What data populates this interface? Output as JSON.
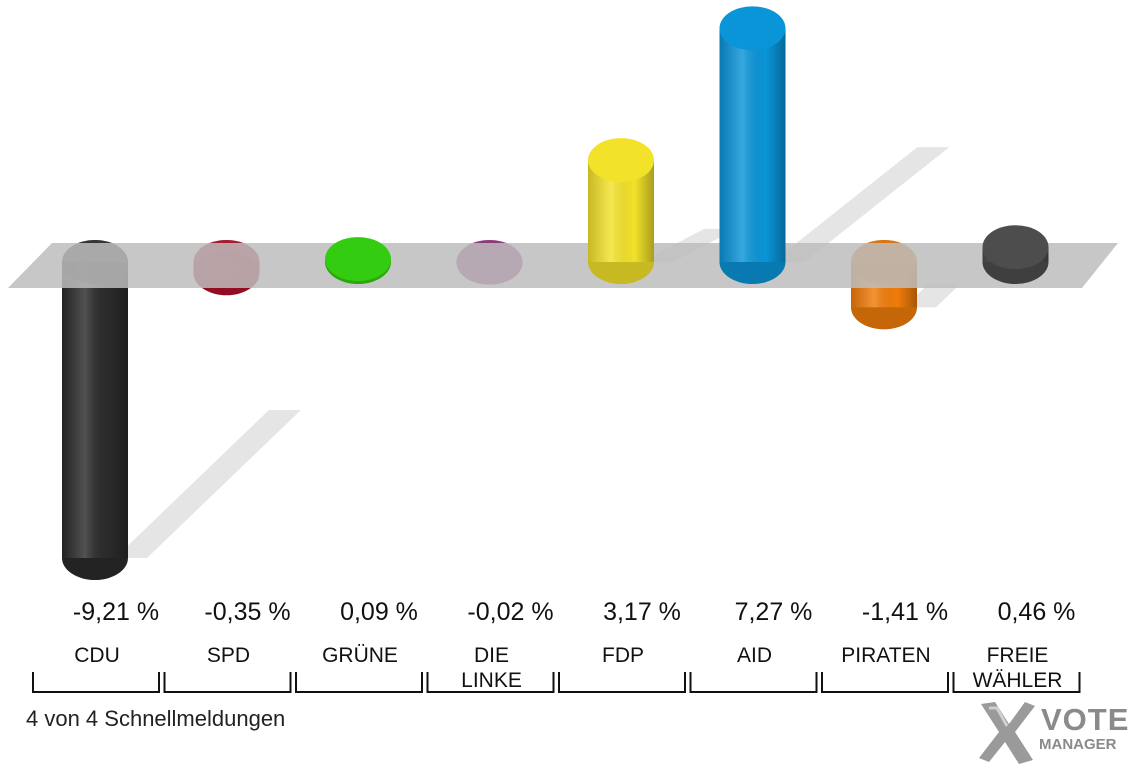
{
  "chart_data": {
    "type": "bar",
    "categories": [
      "CDU",
      "SPD",
      "GRÜNE",
      "DIE LINKE",
      "FDP",
      "AID",
      "PIRATEN",
      "FREIE WÄHLER"
    ],
    "category_lines": [
      [
        "CDU"
      ],
      [
        "SPD"
      ],
      [
        "GRÜNE"
      ],
      [
        "DIE",
        "LINKE"
      ],
      [
        "FDP"
      ],
      [
        "AID"
      ],
      [
        "PIRATEN"
      ],
      [
        "FREIE",
        "WÄHLER"
      ]
    ],
    "values": [
      -9.21,
      -0.35,
      0.09,
      -0.02,
      3.17,
      7.27,
      -1.41,
      0.46
    ],
    "value_labels": [
      "-9,21 %",
      "-0,35 %",
      "0,09 %",
      "-0,02 %",
      "3,17 %",
      "7,27 %",
      "-1,41 %",
      "0,46 %"
    ],
    "colors": [
      "#2b2b2b",
      "#b3102a",
      "#33cc11",
      "#a0428a",
      "#f2e22a",
      "#0a95d8",
      "#f07c0a",
      "#4d4d4d"
    ],
    "ylim": [
      -9.21,
      7.27
    ],
    "grid": false
  },
  "footer": {
    "text": "4 von 4 Schnellmeldungen"
  },
  "logo": {
    "line1": "VOTE",
    "line2": "MANAGER"
  }
}
